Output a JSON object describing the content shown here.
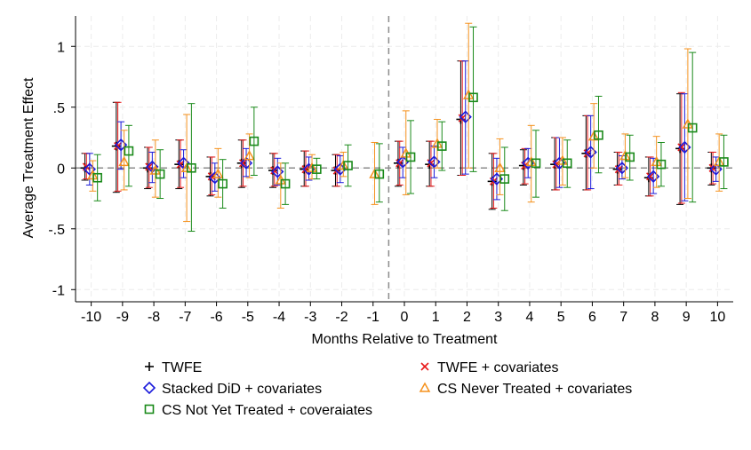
{
  "chart_data": {
    "type": "scatter",
    "title": "",
    "xlabel": "Months Relative to Treatment",
    "ylabel": "Average Treatment Effect",
    "xlim": [
      -10.5,
      10.5
    ],
    "ylim": [
      -1.1,
      1.25
    ],
    "x_ticks": [
      -10,
      -9,
      -8,
      -7,
      -6,
      -5,
      -4,
      -3,
      -2,
      -1,
      0,
      1,
      2,
      3,
      4,
      5,
      6,
      7,
      8,
      9,
      10
    ],
    "y_ticks": [
      -1,
      -0.5,
      0,
      0.5,
      1
    ],
    "y_tick_labels": [
      "-1",
      "-.5",
      "0",
      ".5",
      "1"
    ],
    "grid": true,
    "reference_lines": {
      "y": 0,
      "x": -0.5
    },
    "legend_position": "bottom",
    "series": [
      {
        "name": "TWFE",
        "marker": "plus",
        "color": "#000000",
        "offset": -0.2,
        "points": [
          {
            "x": -10,
            "y": 0.0,
            "lo": -0.1,
            "hi": 0.12
          },
          {
            "x": -9,
            "y": 0.18,
            "lo": -0.2,
            "hi": 0.54
          },
          {
            "x": -8,
            "y": 0.0,
            "lo": -0.17,
            "hi": 0.17
          },
          {
            "x": -7,
            "y": 0.03,
            "lo": -0.17,
            "hi": 0.23
          },
          {
            "x": -6,
            "y": -0.07,
            "lo": -0.23,
            "hi": 0.09
          },
          {
            "x": -5,
            "y": 0.04,
            "lo": -0.16,
            "hi": 0.23
          },
          {
            "x": -4,
            "y": -0.02,
            "lo": -0.16,
            "hi": 0.12
          },
          {
            "x": -3,
            "y": -0.01,
            "lo": -0.15,
            "hi": 0.14
          },
          {
            "x": -2,
            "y": -0.02,
            "lo": -0.15,
            "hi": 0.11
          },
          {
            "x": 0,
            "y": 0.04,
            "lo": -0.15,
            "hi": 0.22
          },
          {
            "x": 1,
            "y": 0.03,
            "lo": -0.15,
            "hi": 0.22
          },
          {
            "x": 2,
            "y": 0.4,
            "lo": -0.06,
            "hi": 0.88
          },
          {
            "x": 3,
            "y": -0.11,
            "lo": -0.34,
            "hi": 0.12
          },
          {
            "x": 4,
            "y": 0.02,
            "lo": -0.14,
            "hi": 0.15
          },
          {
            "x": 5,
            "y": 0.03,
            "lo": -0.18,
            "hi": 0.25
          },
          {
            "x": 6,
            "y": 0.12,
            "lo": -0.18,
            "hi": 0.43
          },
          {
            "x": 7,
            "y": -0.01,
            "lo": -0.14,
            "hi": 0.13
          },
          {
            "x": 8,
            "y": -0.08,
            "lo": -0.23,
            "hi": 0.09
          },
          {
            "x": 9,
            "y": 0.16,
            "lo": -0.3,
            "hi": 0.61
          },
          {
            "x": 10,
            "y": 0.0,
            "lo": -0.14,
            "hi": 0.13
          }
        ]
      },
      {
        "name": "TWFE + covariates",
        "marker": "x",
        "color": "#e8191a",
        "offset": -0.15,
        "points": [
          {
            "x": -10,
            "y": 0.01,
            "lo": -0.09,
            "hi": 0.12
          },
          {
            "x": -9,
            "y": 0.18,
            "lo": -0.19,
            "hi": 0.54
          },
          {
            "x": -8,
            "y": 0.01,
            "lo": -0.16,
            "hi": 0.17
          },
          {
            "x": -7,
            "y": 0.03,
            "lo": -0.16,
            "hi": 0.23
          },
          {
            "x": -6,
            "y": -0.07,
            "lo": -0.22,
            "hi": 0.09
          },
          {
            "x": -5,
            "y": 0.04,
            "lo": -0.15,
            "hi": 0.23
          },
          {
            "x": -4,
            "y": -0.02,
            "lo": -0.15,
            "hi": 0.12
          },
          {
            "x": -3,
            "y": -0.01,
            "lo": -0.15,
            "hi": 0.14
          },
          {
            "x": -2,
            "y": -0.02,
            "lo": -0.15,
            "hi": 0.11
          },
          {
            "x": 0,
            "y": 0.04,
            "lo": -0.14,
            "hi": 0.22
          },
          {
            "x": 1,
            "y": 0.04,
            "lo": -0.15,
            "hi": 0.22
          },
          {
            "x": 2,
            "y": 0.41,
            "lo": -0.06,
            "hi": 0.88
          },
          {
            "x": 3,
            "y": -0.11,
            "lo": -0.33,
            "hi": 0.12
          },
          {
            "x": 4,
            "y": 0.02,
            "lo": -0.13,
            "hi": 0.16
          },
          {
            "x": 5,
            "y": 0.03,
            "lo": -0.18,
            "hi": 0.25
          },
          {
            "x": 6,
            "y": 0.12,
            "lo": -0.18,
            "hi": 0.43
          },
          {
            "x": 7,
            "y": -0.01,
            "lo": -0.14,
            "hi": 0.13
          },
          {
            "x": 8,
            "y": -0.07,
            "lo": -0.23,
            "hi": 0.09
          },
          {
            "x": 9,
            "y": 0.17,
            "lo": -0.29,
            "hi": 0.62
          },
          {
            "x": 10,
            "y": 0.0,
            "lo": -0.13,
            "hi": 0.13
          }
        ]
      },
      {
        "name": "Stacked DiD + covariates",
        "marker": "diamond",
        "color": "#1a1adb",
        "offset": -0.05,
        "points": [
          {
            "x": -10,
            "y": -0.01,
            "lo": -0.14,
            "hi": 0.12
          },
          {
            "x": -9,
            "y": 0.19,
            "lo": -0.01,
            "hi": 0.38
          },
          {
            "x": -8,
            "y": 0.01,
            "lo": -0.12,
            "hi": 0.13
          },
          {
            "x": -7,
            "y": 0.04,
            "lo": -0.08,
            "hi": 0.15
          },
          {
            "x": -6,
            "y": -0.08,
            "lo": -0.19,
            "hi": 0.04
          },
          {
            "x": -5,
            "y": 0.04,
            "lo": -0.07,
            "hi": 0.16
          },
          {
            "x": -4,
            "y": -0.03,
            "lo": -0.14,
            "hi": 0.08
          },
          {
            "x": -3,
            "y": -0.01,
            "lo": -0.1,
            "hi": 0.09
          },
          {
            "x": -2,
            "y": -0.01,
            "lo": -0.12,
            "hi": 0.1
          },
          {
            "x": 0,
            "y": 0.05,
            "lo": -0.08,
            "hi": 0.17
          },
          {
            "x": 1,
            "y": 0.05,
            "lo": -0.08,
            "hi": 0.18
          },
          {
            "x": 2,
            "y": 0.42,
            "lo": -0.05,
            "hi": 0.88
          },
          {
            "x": 3,
            "y": -0.09,
            "lo": -0.26,
            "hi": 0.08
          },
          {
            "x": 4,
            "y": 0.04,
            "lo": -0.08,
            "hi": 0.16
          },
          {
            "x": 5,
            "y": 0.04,
            "lo": -0.16,
            "hi": 0.25
          },
          {
            "x": 6,
            "y": 0.13,
            "lo": -0.17,
            "hi": 0.43
          },
          {
            "x": 7,
            "y": 0.0,
            "lo": -0.09,
            "hi": 0.1
          },
          {
            "x": 8,
            "y": -0.07,
            "lo": -0.21,
            "hi": 0.08
          },
          {
            "x": 9,
            "y": 0.17,
            "lo": -0.27,
            "hi": 0.61
          },
          {
            "x": 10,
            "y": -0.01,
            "lo": -0.11,
            "hi": 0.09
          }
        ]
      },
      {
        "name": "CS Never Treated + covariates",
        "marker": "triangle",
        "color": "#f5921e",
        "offset": 0.05,
        "points": [
          {
            "x": -10,
            "y": -0.06,
            "lo": -0.19,
            "hi": 0.06
          },
          {
            "x": -9,
            "y": 0.05,
            "lo": -0.18,
            "hi": 0.31
          },
          {
            "x": -8,
            "y": -0.02,
            "lo": -0.24,
            "hi": 0.23
          },
          {
            "x": -7,
            "y": 0.0,
            "lo": -0.44,
            "hi": 0.44
          },
          {
            "x": -6,
            "y": -0.05,
            "lo": -0.24,
            "hi": 0.16
          },
          {
            "x": -5,
            "y": 0.1,
            "lo": -0.08,
            "hi": 0.28
          },
          {
            "x": -4,
            "y": -0.1,
            "lo": -0.33,
            "hi": 0.04
          },
          {
            "x": -3,
            "y": 0.0,
            "lo": -0.09,
            "hi": 0.11
          },
          {
            "x": -2,
            "y": 0.02,
            "lo": -0.07,
            "hi": 0.13
          },
          {
            "x": -1,
            "y": -0.05,
            "lo": -0.3,
            "hi": 0.21
          },
          {
            "x": 0,
            "y": 0.12,
            "lo": -0.22,
            "hi": 0.47
          },
          {
            "x": 1,
            "y": 0.2,
            "lo": 0.0,
            "hi": 0.4
          },
          {
            "x": 2,
            "y": 0.6,
            "lo": 0.0,
            "hi": 1.19
          },
          {
            "x": 3,
            "y": 0.0,
            "lo": -0.22,
            "hi": 0.24
          },
          {
            "x": 4,
            "y": 0.05,
            "lo": -0.28,
            "hi": 0.35
          },
          {
            "x": 5,
            "y": 0.06,
            "lo": -0.14,
            "hi": 0.25
          },
          {
            "x": 6,
            "y": 0.26,
            "lo": 0.0,
            "hi": 0.53
          },
          {
            "x": 7,
            "y": 0.1,
            "lo": -0.08,
            "hi": 0.28
          },
          {
            "x": 8,
            "y": 0.05,
            "lo": -0.16,
            "hi": 0.26
          },
          {
            "x": 9,
            "y": 0.36,
            "lo": -0.25,
            "hi": 0.98
          },
          {
            "x": 10,
            "y": 0.05,
            "lo": -0.19,
            "hi": 0.28
          }
        ]
      },
      {
        "name": "CS Not Yet Treated + coveraiates",
        "marker": "square",
        "color": "#1a8a1a",
        "offset": 0.2,
        "points": [
          {
            "x": -10,
            "y": -0.08,
            "lo": -0.27,
            "hi": 0.11
          },
          {
            "x": -9,
            "y": 0.14,
            "lo": -0.15,
            "hi": 0.35
          },
          {
            "x": -8,
            "y": -0.05,
            "lo": -0.25,
            "hi": 0.15
          },
          {
            "x": -7,
            "y": 0.0,
            "lo": -0.52,
            "hi": 0.53
          },
          {
            "x": -6,
            "y": -0.13,
            "lo": -0.33,
            "hi": 0.07
          },
          {
            "x": -5,
            "y": 0.22,
            "lo": -0.06,
            "hi": 0.5
          },
          {
            "x": -4,
            "y": -0.13,
            "lo": -0.3,
            "hi": 0.04
          },
          {
            "x": -3,
            "y": -0.01,
            "lo": -0.09,
            "hi": 0.08
          },
          {
            "x": -2,
            "y": 0.02,
            "lo": -0.15,
            "hi": 0.19
          },
          {
            "x": -1,
            "y": -0.05,
            "lo": -0.28,
            "hi": 0.2
          },
          {
            "x": 0,
            "y": 0.09,
            "lo": -0.21,
            "hi": 0.39
          },
          {
            "x": 1,
            "y": 0.18,
            "lo": -0.02,
            "hi": 0.38
          },
          {
            "x": 2,
            "y": 0.58,
            "lo": -0.03,
            "hi": 1.16
          },
          {
            "x": 3,
            "y": -0.09,
            "lo": -0.35,
            "hi": 0.17
          },
          {
            "x": 4,
            "y": 0.04,
            "lo": -0.24,
            "hi": 0.31
          },
          {
            "x": 5,
            "y": 0.04,
            "lo": -0.16,
            "hi": 0.23
          },
          {
            "x": 6,
            "y": 0.27,
            "lo": -0.04,
            "hi": 0.59
          },
          {
            "x": 7,
            "y": 0.09,
            "lo": -0.1,
            "hi": 0.27
          },
          {
            "x": 8,
            "y": 0.03,
            "lo": -0.15,
            "hi": 0.21
          },
          {
            "x": 9,
            "y": 0.33,
            "lo": -0.28,
            "hi": 0.95
          },
          {
            "x": 10,
            "y": 0.05,
            "lo": -0.17,
            "hi": 0.27
          }
        ]
      }
    ]
  }
}
